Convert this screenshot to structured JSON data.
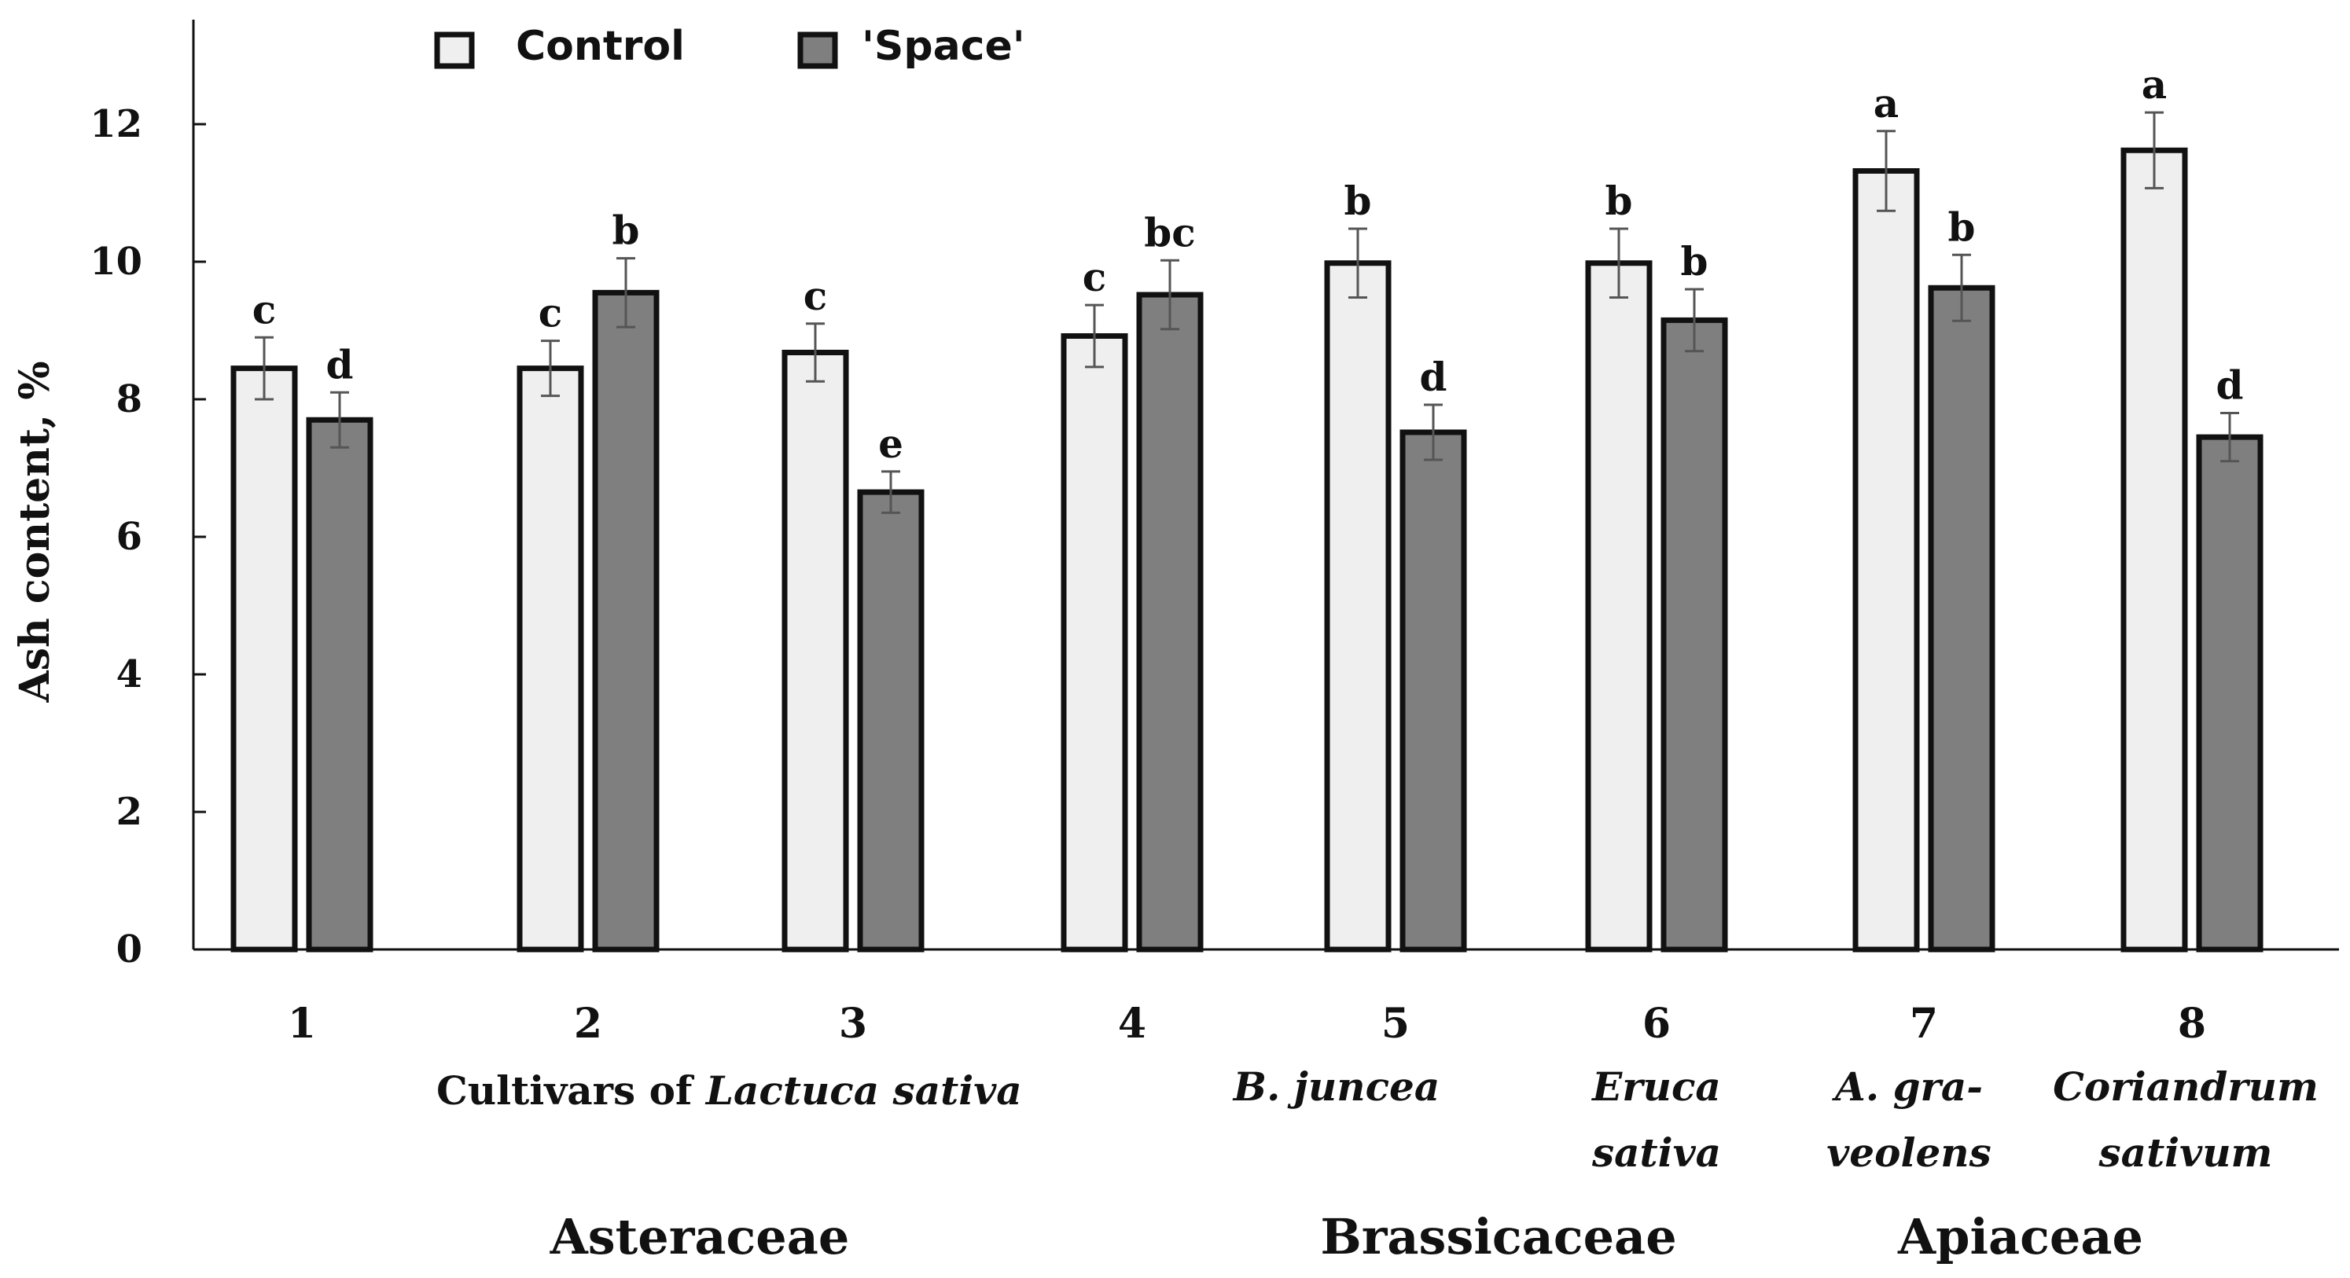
{
  "chart_data": {
    "type": "bar",
    "title": "",
    "ylabel": "Ash content, %",
    "xlabel_prefix": "Cultivars of ",
    "xlabel_italic": "Lactuca sativa",
    "ylim": [
      0,
      13
    ],
    "yticks": [
      0,
      2,
      4,
      6,
      8,
      10,
      12
    ],
    "categories": [
      "1",
      "2",
      "3",
      "4",
      "5",
      "6",
      "7",
      "8"
    ],
    "series": [
      {
        "name": "Control",
        "color": "#efefef",
        "values": [
          8.45,
          8.45,
          8.68,
          8.92,
          9.98,
          9.98,
          11.32,
          11.62
        ],
        "errors": [
          0.45,
          0.4,
          0.42,
          0.45,
          0.5,
          0.5,
          0.58,
          0.55
        ],
        "letters": [
          "c",
          "c",
          "c",
          "c",
          "b",
          "b",
          "a",
          "a"
        ]
      },
      {
        "name": "'Space'",
        "color": "#7f7f7f",
        "values": [
          7.7,
          9.55,
          6.65,
          9.52,
          7.52,
          9.15,
          9.62,
          7.45
        ],
        "errors": [
          0.4,
          0.5,
          0.3,
          0.5,
          0.4,
          0.45,
          0.48,
          0.35
        ],
        "letters": [
          "d",
          "b",
          "e",
          "bc",
          "d",
          "b",
          "b",
          "d"
        ]
      }
    ],
    "species_labels": [
      {
        "category": "5",
        "lines": [
          "B. juncea"
        ]
      },
      {
        "category": "6",
        "lines": [
          "Eruca",
          "sativa"
        ]
      },
      {
        "category": "7",
        "lines": [
          "A. gra-",
          "veolens"
        ]
      },
      {
        "category": "8",
        "lines": [
          "Coriandrum",
          "sativum"
        ]
      }
    ],
    "families": [
      {
        "name": "Asteraceae",
        "categories": [
          "1",
          "2",
          "3",
          "4"
        ]
      },
      {
        "name": "Brassicaceae",
        "categories": [
          "5",
          "6"
        ]
      },
      {
        "name": "Apiaceae",
        "categories": [
          "7",
          "8"
        ]
      }
    ],
    "legend_position": "top-left",
    "grid": false
  }
}
